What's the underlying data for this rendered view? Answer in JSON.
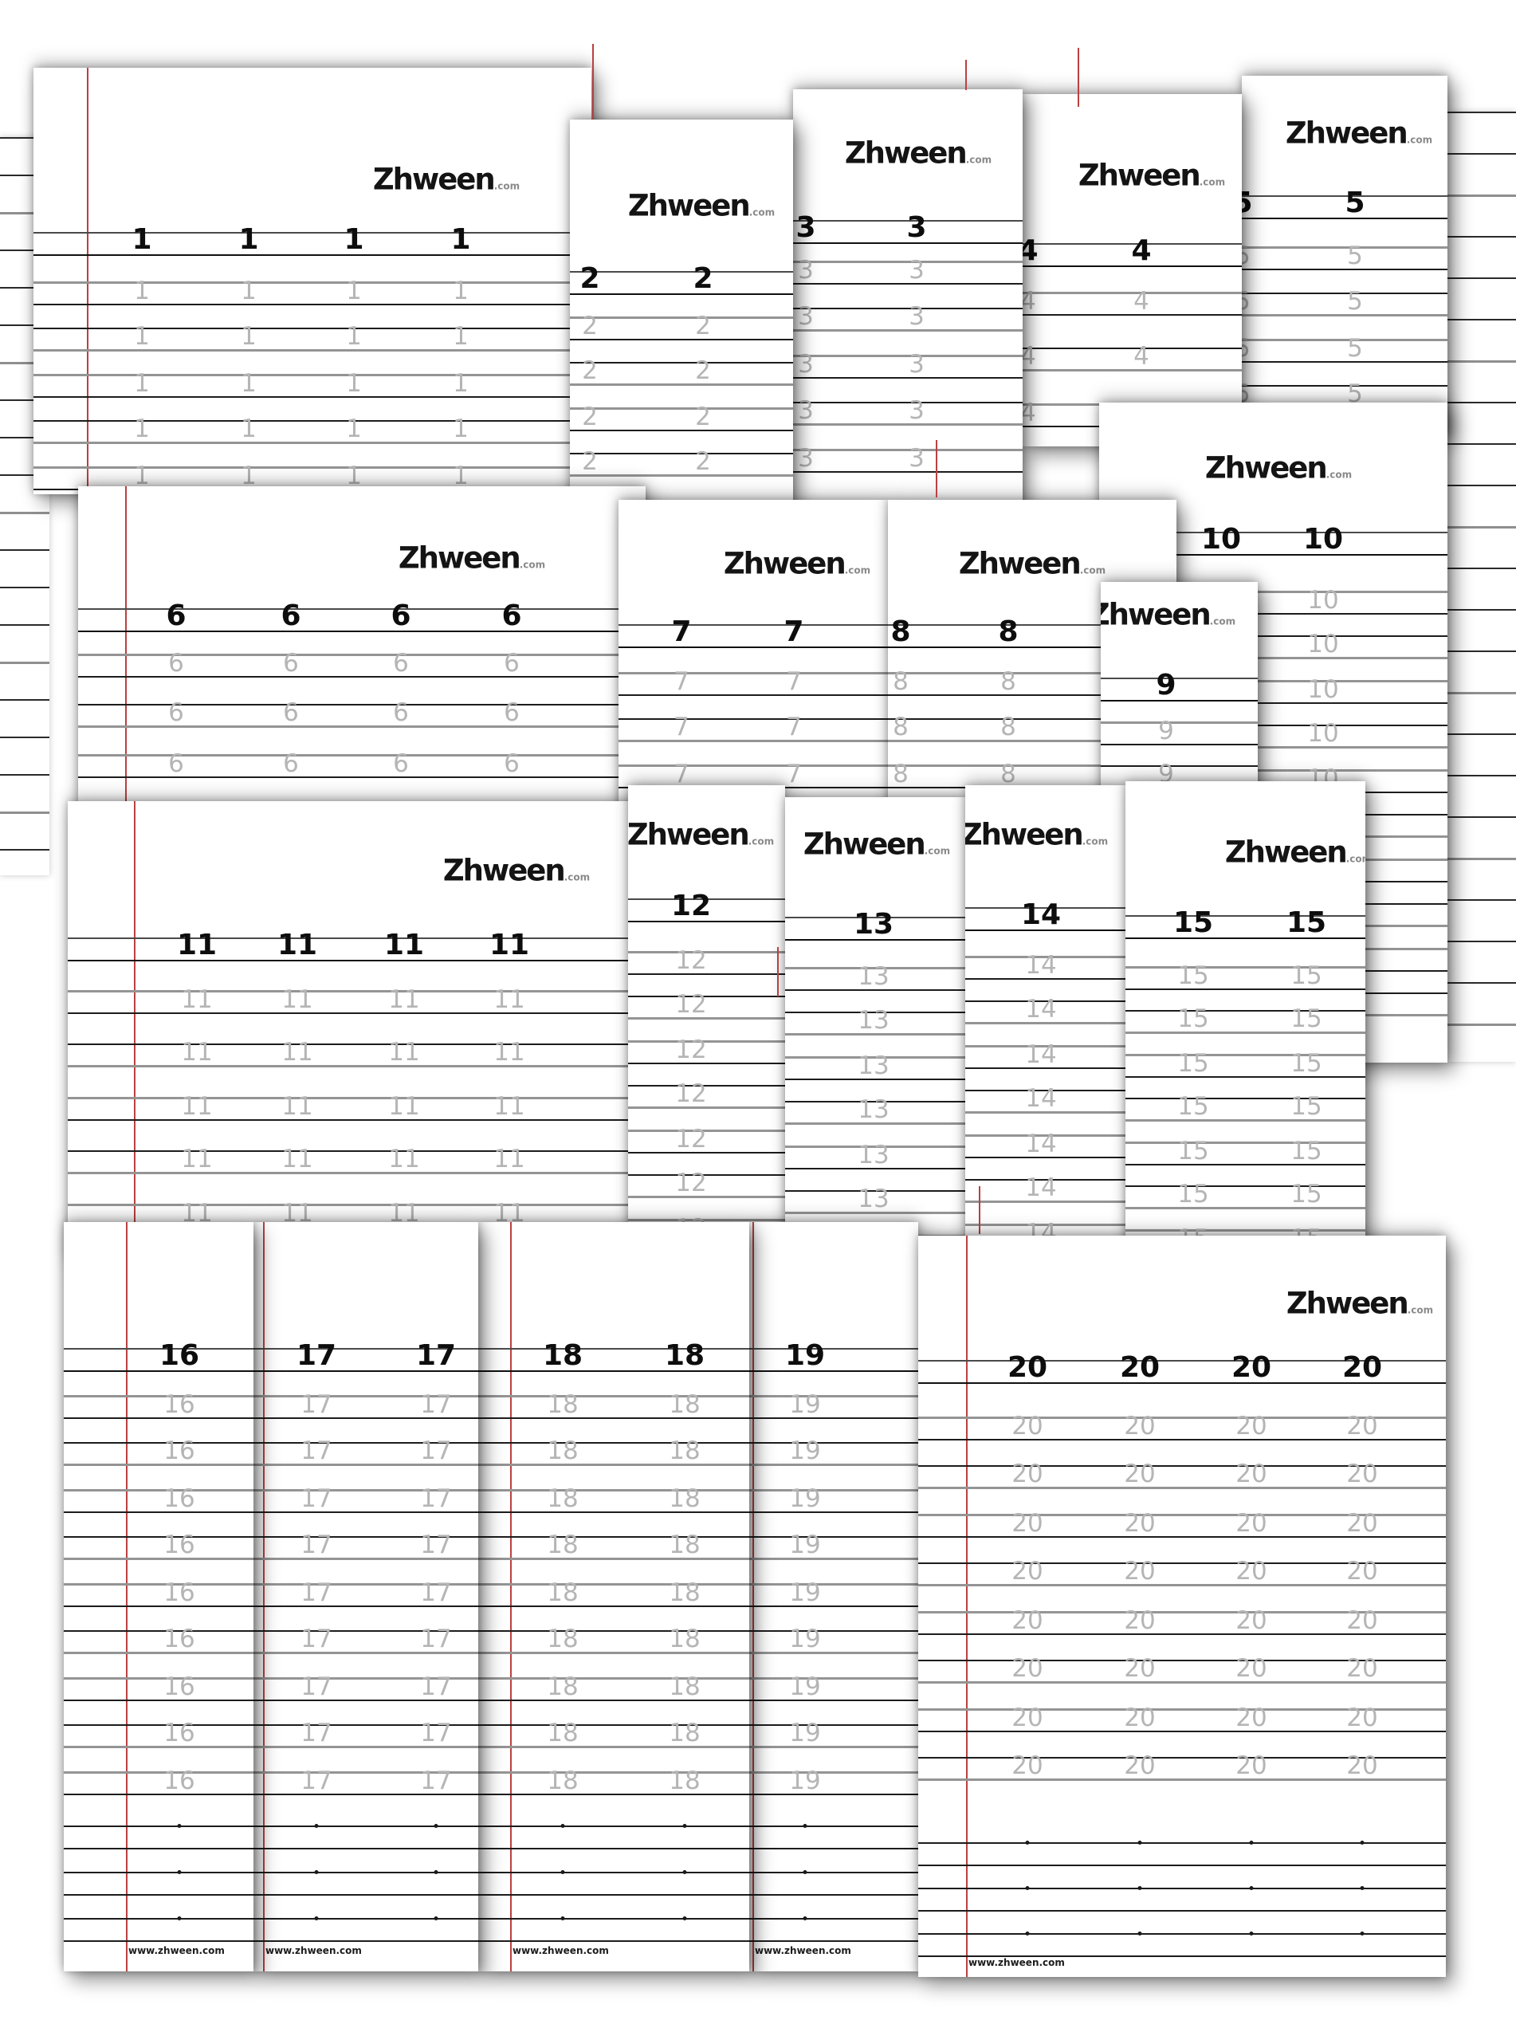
{
  "brand": {
    "name": "Zhween",
    "suffix": ".com"
  },
  "footer_url": "www.zhween.com",
  "worksheets": [
    {
      "number": "1"
    },
    {
      "number": "2"
    },
    {
      "number": "3"
    },
    {
      "number": "4"
    },
    {
      "number": "5"
    },
    {
      "number": "6"
    },
    {
      "number": "7"
    },
    {
      "number": "8"
    },
    {
      "number": "9"
    },
    {
      "number": "10"
    },
    {
      "number": "11"
    },
    {
      "number": "12"
    },
    {
      "number": "13"
    },
    {
      "number": "14"
    },
    {
      "number": "15"
    },
    {
      "number": "16"
    },
    {
      "number": "17"
    },
    {
      "number": "18"
    },
    {
      "number": "19"
    },
    {
      "number": "20"
    }
  ]
}
